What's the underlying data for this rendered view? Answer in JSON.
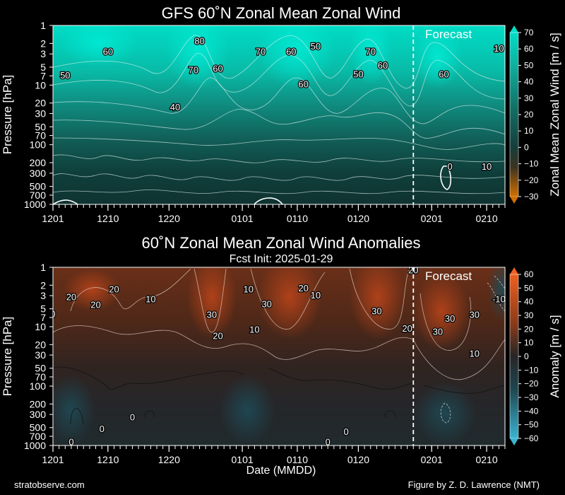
{
  "footer": {
    "left": "stratobserve.com",
    "right": "Figure by Z. D. Lawrence (NMT)"
  },
  "common": {
    "x_ticks": [
      "1201",
      "1210",
      "1220",
      "0101",
      "0110",
      "0120",
      "0201",
      "0210"
    ],
    "x_tick_dates": [
      "2024-12-01",
      "2024-12-10",
      "2024-12-20",
      "2025-01-01",
      "2025-01-10",
      "2025-01-20",
      "2025-02-01",
      "2025-02-10"
    ],
    "x_range": [
      "2024-12-01",
      "2025-02-13"
    ],
    "forecast_start": "2025-01-29",
    "forecast_label": "Forecast",
    "y_ticks": [
      1,
      2,
      3,
      5,
      7,
      10,
      20,
      30,
      50,
      70,
      100,
      200,
      300,
      500,
      700,
      1000
    ],
    "y_range": [
      1000,
      1
    ],
    "y_scale": "log"
  },
  "chart_data": [
    {
      "type": "heatmap",
      "title": "GFS 60˚N Zonal Mean Zonal Wind",
      "ylabel": "Pressure [hPa]",
      "xlabel": "",
      "colorbar": {
        "label": "Zonal Mean Zonal Wind [m / s]",
        "min": -30,
        "max": 70,
        "ticks": [
          70,
          60,
          50,
          40,
          30,
          20,
          10,
          0,
          -10,
          -20,
          -30
        ],
        "colors": [
          "#c76a00",
          "#0f3433",
          "#00ddc8"
        ]
      },
      "contour_labels": [
        {
          "text": "60",
          "date": "2024-12-10",
          "p": 2.7
        },
        {
          "text": "50",
          "date": "2024-12-03",
          "p": 6.8
        },
        {
          "text": "80",
          "date": "2024-12-25",
          "p": 1.8
        },
        {
          "text": "70",
          "date": "2024-12-24",
          "p": 5.5
        },
        {
          "text": "60",
          "date": "2024-12-28",
          "p": 5.2
        },
        {
          "text": "40",
          "date": "2024-12-21",
          "p": 23
        },
        {
          "text": "70",
          "date": "2025-01-04",
          "p": 2.7
        },
        {
          "text": "60",
          "date": "2025-01-09",
          "p": 2.7
        },
        {
          "text": "50",
          "date": "2025-01-13",
          "p": 2.2
        },
        {
          "text": "60",
          "date": "2025-01-11",
          "p": 9.5
        },
        {
          "text": "70",
          "date": "2025-01-22",
          "p": 2.7
        },
        {
          "text": "60",
          "date": "2025-01-24",
          "p": 4.6
        },
        {
          "text": "50",
          "date": "2025-01-20",
          "p": 6.5
        },
        {
          "text": "60",
          "date": "2025-02-03",
          "p": 6.5
        },
        {
          "text": "10",
          "date": "2025-02-12",
          "p": 2.4
        },
        {
          "text": "0",
          "date": "2025-02-04",
          "p": 230
        },
        {
          "text": "10",
          "date": "2025-02-10",
          "p": 230
        }
      ]
    },
    {
      "type": "heatmap",
      "title": "60˚N Zonal Mean Zonal Wind Anomalies",
      "subtitle": "Fcst Init: 2025-01-29",
      "ylabel": "Pressure [hPa]",
      "xlabel": "Date (MMDD)",
      "colorbar": {
        "label": "Anomaly [m / s]",
        "min": -60,
        "max": 60,
        "ticks": [
          60,
          50,
          40,
          30,
          20,
          10,
          0,
          -10,
          -20,
          -30,
          -40,
          -50,
          -60
        ],
        "colors": [
          "#37a9c7",
          "#1f2b2e",
          "#e8541d"
        ]
      },
      "contour_labels": [
        {
          "text": "20",
          "date": "2024-12-04",
          "p": 3.1
        },
        {
          "text": "20",
          "date": "2024-12-08",
          "p": 4.2
        },
        {
          "text": "20",
          "date": "2024-12-11",
          "p": 2.3
        },
        {
          "text": "10",
          "date": "2024-12-17",
          "p": 3.4
        },
        {
          "text": "30",
          "date": "2024-12-27",
          "p": 6.2
        },
        {
          "text": "20",
          "date": "2024-12-28",
          "p": 14
        },
        {
          "text": "10",
          "date": "2025-01-02",
          "p": 2.3
        },
        {
          "text": "30",
          "date": "2025-01-05",
          "p": 4.1
        },
        {
          "text": "10",
          "date": "2025-01-03",
          "p": 11
        },
        {
          "text": "20",
          "date": "2025-01-11",
          "p": 2.2
        },
        {
          "text": "10",
          "date": "2025-01-13",
          "p": 2.9
        },
        {
          "text": "30",
          "date": "2025-01-23",
          "p": 5.4
        },
        {
          "text": "20",
          "date": "2025-01-28",
          "p": 10.5
        },
        {
          "text": "20",
          "date": "2025-01-29",
          "p": 1.1
        },
        {
          "text": "30",
          "date": "2025-02-04",
          "p": 7.2
        },
        {
          "text": "30",
          "date": "2025-02-02",
          "p": 12
        },
        {
          "text": "30",
          "date": "2025-02-08",
          "p": 6.2
        },
        {
          "text": "10",
          "date": "2025-02-08",
          "p": 28
        },
        {
          "text": "-10",
          "date": "2025-02-12",
          "p": 3.4
        },
        {
          "text": "0",
          "date": "2024-12-01",
          "p": 6.0
        },
        {
          "text": "0",
          "date": "2024-12-14",
          "p": 330
        },
        {
          "text": "0",
          "date": "2024-12-09",
          "p": 520
        },
        {
          "text": "0",
          "date": "2024-12-04",
          "p": 860
        },
        {
          "text": "0",
          "date": "2025-01-18",
          "p": 580
        },
        {
          "text": "0",
          "date": "2025-01-15",
          "p": 860
        }
      ]
    }
  ]
}
